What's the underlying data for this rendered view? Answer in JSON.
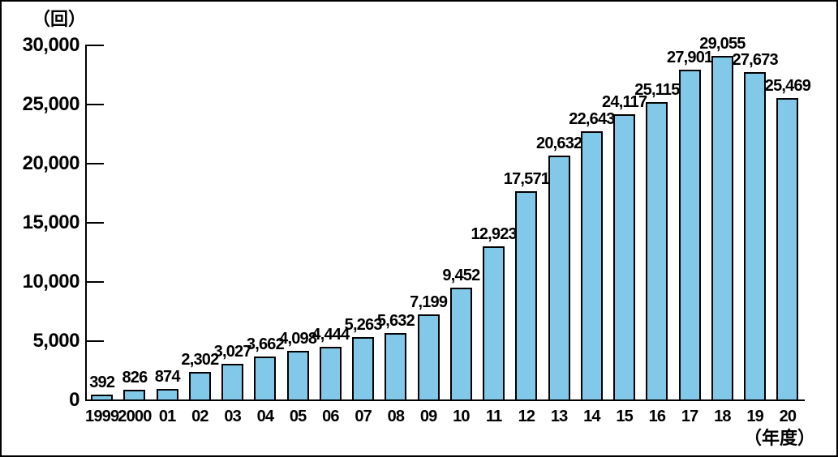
{
  "figure": {
    "y_axis_unit_label": "（回）",
    "x_axis_unit_label": "（年度）"
  },
  "chart_data": {
    "type": "bar",
    "title": "",
    "xlabel": "（年度）",
    "ylabel": "（回）",
    "categories": [
      "1999",
      "2000",
      "01",
      "02",
      "03",
      "04",
      "05",
      "06",
      "07",
      "08",
      "09",
      "10",
      "11",
      "12",
      "13",
      "14",
      "15",
      "16",
      "17",
      "18",
      "19",
      "20"
    ],
    "values": [
      392,
      826,
      874,
      2302,
      3027,
      3662,
      4098,
      4444,
      5263,
      5632,
      7199,
      9452,
      12923,
      17571,
      20632,
      22643,
      24117,
      25115,
      27901,
      29055,
      27673,
      25469
    ],
    "value_labels": [
      "392",
      "826",
      "874",
      "2,302",
      "3,027",
      "3,662",
      "4,098",
      "4,444",
      "5,263",
      "5,632",
      "7,199",
      "9,452",
      "12,923",
      "17,571",
      "20,632",
      "22,643",
      "24,117",
      "25,115",
      "27,901",
      "29,055",
      "27,673",
      "25,469"
    ],
    "ylim": [
      0,
      30000
    ],
    "ytick_interval": 5000,
    "ytick_labels": [
      "0",
      "5,000",
      "10,000",
      "15,000",
      "20,000",
      "25,000",
      "30,000"
    ],
    "grid": false,
    "legend_position": "none",
    "bar_color": "#82C8E8",
    "bar_border_color": "#000000",
    "axis_color": "#000000",
    "text_color": "#000000"
  }
}
